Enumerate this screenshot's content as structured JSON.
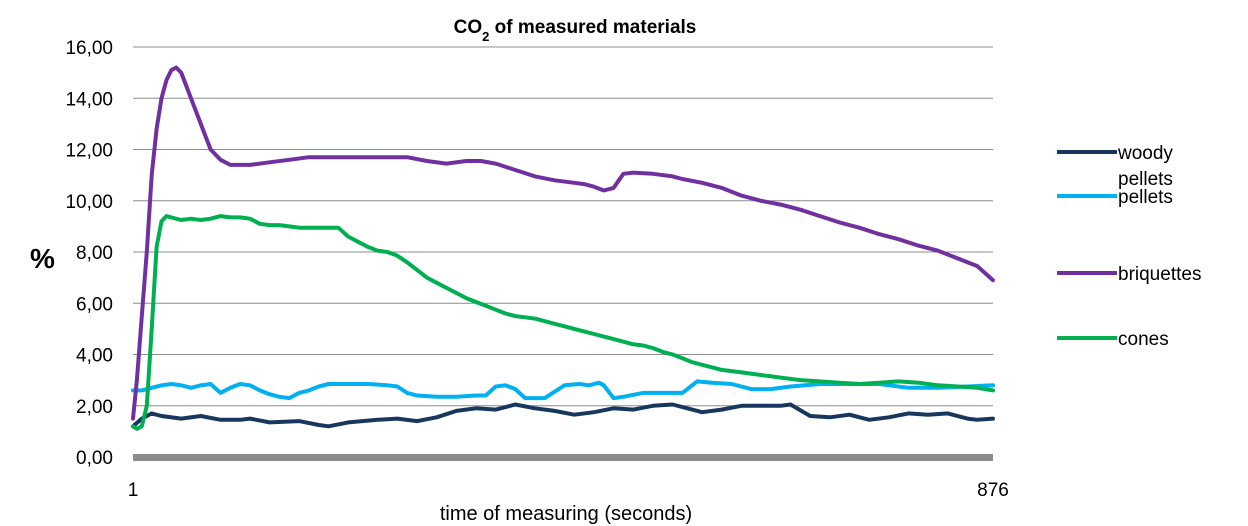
{
  "chart_data": {
    "type": "line",
    "title_main": "CO",
    "title_sub": "2",
    "title_rest": " of measured materials",
    "xlabel": "time of measuring (seconds)",
    "ylabel": "%",
    "xlim": [
      1,
      876
    ],
    "ylim": [
      0,
      16
    ],
    "x_tick_labels": [
      "1",
      "876"
    ],
    "y_tick_labels": [
      "0,00",
      "2,00",
      "4,00",
      "6,00",
      "8,00",
      "10,00",
      "12,00",
      "14,00",
      "16,00"
    ],
    "legend_position": "right",
    "grid": true,
    "series": [
      {
        "name_lines": [
          "woody",
          "pellets"
        ],
        "color": "#17375e",
        "points": [
          [
            1,
            1.2
          ],
          [
            10,
            1.5
          ],
          [
            20,
            1.7
          ],
          [
            30,
            1.6
          ],
          [
            50,
            1.5
          ],
          [
            70,
            1.6
          ],
          [
            90,
            1.45
          ],
          [
            110,
            1.45
          ],
          [
            120,
            1.5
          ],
          [
            140,
            1.35
          ],
          [
            170,
            1.4
          ],
          [
            190,
            1.25
          ],
          [
            200,
            1.2
          ],
          [
            220,
            1.35
          ],
          [
            250,
            1.45
          ],
          [
            270,
            1.5
          ],
          [
            290,
            1.4
          ],
          [
            310,
            1.55
          ],
          [
            330,
            1.8
          ],
          [
            350,
            1.9
          ],
          [
            370,
            1.85
          ],
          [
            390,
            2.05
          ],
          [
            410,
            1.9
          ],
          [
            430,
            1.8
          ],
          [
            450,
            1.65
          ],
          [
            470,
            1.75
          ],
          [
            490,
            1.9
          ],
          [
            510,
            1.85
          ],
          [
            530,
            2.0
          ],
          [
            550,
            2.05
          ],
          [
            565,
            1.9
          ],
          [
            580,
            1.75
          ],
          [
            600,
            1.85
          ],
          [
            620,
            2.0
          ],
          [
            640,
            2.0
          ],
          [
            660,
            2.0
          ],
          [
            670,
            2.05
          ],
          [
            690,
            1.6
          ],
          [
            710,
            1.55
          ],
          [
            730,
            1.65
          ],
          [
            750,
            1.45
          ],
          [
            770,
            1.55
          ],
          [
            790,
            1.7
          ],
          [
            810,
            1.65
          ],
          [
            830,
            1.7
          ],
          [
            850,
            1.5
          ],
          [
            860,
            1.45
          ],
          [
            876,
            1.5
          ]
        ]
      },
      {
        "name_lines": [
          "pellets"
        ],
        "color": "#00b0f0",
        "points": [
          [
            1,
            2.6
          ],
          [
            10,
            2.6
          ],
          [
            20,
            2.7
          ],
          [
            30,
            2.8
          ],
          [
            40,
            2.85
          ],
          [
            50,
            2.8
          ],
          [
            60,
            2.7
          ],
          [
            70,
            2.8
          ],
          [
            80,
            2.85
          ],
          [
            90,
            2.5
          ],
          [
            100,
            2.7
          ],
          [
            110,
            2.85
          ],
          [
            120,
            2.8
          ],
          [
            130,
            2.6
          ],
          [
            140,
            2.45
          ],
          [
            150,
            2.35
          ],
          [
            160,
            2.3
          ],
          [
            170,
            2.5
          ],
          [
            180,
            2.6
          ],
          [
            190,
            2.75
          ],
          [
            200,
            2.85
          ],
          [
            220,
            2.85
          ],
          [
            240,
            2.85
          ],
          [
            260,
            2.8
          ],
          [
            270,
            2.75
          ],
          [
            280,
            2.5
          ],
          [
            290,
            2.4
          ],
          [
            310,
            2.35
          ],
          [
            330,
            2.35
          ],
          [
            350,
            2.4
          ],
          [
            360,
            2.4
          ],
          [
            370,
            2.75
          ],
          [
            380,
            2.8
          ],
          [
            390,
            2.65
          ],
          [
            400,
            2.3
          ],
          [
            420,
            2.3
          ],
          [
            440,
            2.8
          ],
          [
            455,
            2.85
          ],
          [
            465,
            2.8
          ],
          [
            475,
            2.9
          ],
          [
            480,
            2.8
          ],
          [
            490,
            2.3
          ],
          [
            500,
            2.35
          ],
          [
            520,
            2.5
          ],
          [
            540,
            2.5
          ],
          [
            560,
            2.5
          ],
          [
            575,
            2.95
          ],
          [
            590,
            2.9
          ],
          [
            610,
            2.85
          ],
          [
            630,
            2.65
          ],
          [
            650,
            2.65
          ],
          [
            670,
            2.75
          ],
          [
            700,
            2.85
          ],
          [
            730,
            2.85
          ],
          [
            760,
            2.85
          ],
          [
            790,
            2.7
          ],
          [
            820,
            2.7
          ],
          [
            850,
            2.75
          ],
          [
            876,
            2.8
          ]
        ]
      },
      {
        "name_lines": [
          "briquettes"
        ],
        "color": "#7030a0",
        "points": [
          [
            1,
            1.5
          ],
          [
            5,
            3.0
          ],
          [
            10,
            5.5
          ],
          [
            15,
            8.0
          ],
          [
            20,
            11.0
          ],
          [
            25,
            12.8
          ],
          [
            30,
            14.0
          ],
          [
            35,
            14.7
          ],
          [
            40,
            15.1
          ],
          [
            45,
            15.2
          ],
          [
            50,
            15.0
          ],
          [
            55,
            14.5
          ],
          [
            60,
            14.0
          ],
          [
            70,
            13.0
          ],
          [
            80,
            12.0
          ],
          [
            90,
            11.6
          ],
          [
            100,
            11.4
          ],
          [
            120,
            11.4
          ],
          [
            140,
            11.5
          ],
          [
            160,
            11.6
          ],
          [
            180,
            11.7
          ],
          [
            200,
            11.7
          ],
          [
            220,
            11.7
          ],
          [
            240,
            11.7
          ],
          [
            260,
            11.7
          ],
          [
            280,
            11.7
          ],
          [
            300,
            11.55
          ],
          [
            320,
            11.45
          ],
          [
            340,
            11.55
          ],
          [
            355,
            11.55
          ],
          [
            370,
            11.45
          ],
          [
            390,
            11.2
          ],
          [
            410,
            10.95
          ],
          [
            430,
            10.8
          ],
          [
            450,
            10.7
          ],
          [
            460,
            10.65
          ],
          [
            470,
            10.55
          ],
          [
            480,
            10.4
          ],
          [
            490,
            10.5
          ],
          [
            500,
            11.05
          ],
          [
            510,
            11.1
          ],
          [
            530,
            11.05
          ],
          [
            550,
            10.95
          ],
          [
            560,
            10.85
          ],
          [
            580,
            10.7
          ],
          [
            600,
            10.5
          ],
          [
            620,
            10.2
          ],
          [
            640,
            10.0
          ],
          [
            660,
            9.85
          ],
          [
            680,
            9.65
          ],
          [
            700,
            9.4
          ],
          [
            720,
            9.15
          ],
          [
            740,
            8.95
          ],
          [
            760,
            8.7
          ],
          [
            780,
            8.5
          ],
          [
            800,
            8.25
          ],
          [
            820,
            8.05
          ],
          [
            840,
            7.75
          ],
          [
            860,
            7.45
          ],
          [
            876,
            6.9
          ]
        ]
      },
      {
        "name_lines": [
          "cones"
        ],
        "color": "#00b050",
        "points": [
          [
            1,
            1.2
          ],
          [
            5,
            1.1
          ],
          [
            10,
            1.2
          ],
          [
            15,
            2.0
          ],
          [
            20,
            5.0
          ],
          [
            25,
            8.2
          ],
          [
            30,
            9.2
          ],
          [
            35,
            9.4
          ],
          [
            40,
            9.35
          ],
          [
            50,
            9.25
          ],
          [
            60,
            9.3
          ],
          [
            70,
            9.25
          ],
          [
            80,
            9.3
          ],
          [
            90,
            9.4
          ],
          [
            100,
            9.35
          ],
          [
            110,
            9.35
          ],
          [
            120,
            9.3
          ],
          [
            130,
            9.1
          ],
          [
            140,
            9.05
          ],
          [
            150,
            9.05
          ],
          [
            160,
            9.0
          ],
          [
            170,
            8.95
          ],
          [
            180,
            8.95
          ],
          [
            190,
            8.95
          ],
          [
            200,
            8.95
          ],
          [
            210,
            8.95
          ],
          [
            220,
            8.6
          ],
          [
            230,
            8.4
          ],
          [
            240,
            8.2
          ],
          [
            250,
            8.05
          ],
          [
            260,
            8.0
          ],
          [
            270,
            7.85
          ],
          [
            280,
            7.6
          ],
          [
            290,
            7.3
          ],
          [
            300,
            7.0
          ],
          [
            310,
            6.8
          ],
          [
            320,
            6.6
          ],
          [
            330,
            6.4
          ],
          [
            340,
            6.2
          ],
          [
            350,
            6.05
          ],
          [
            360,
            5.9
          ],
          [
            370,
            5.75
          ],
          [
            380,
            5.6
          ],
          [
            390,
            5.5
          ],
          [
            400,
            5.45
          ],
          [
            410,
            5.4
          ],
          [
            420,
            5.3
          ],
          [
            430,
            5.2
          ],
          [
            440,
            5.1
          ],
          [
            450,
            5.0
          ],
          [
            460,
            4.9
          ],
          [
            470,
            4.8
          ],
          [
            480,
            4.7
          ],
          [
            490,
            4.6
          ],
          [
            500,
            4.5
          ],
          [
            510,
            4.4
          ],
          [
            520,
            4.35
          ],
          [
            530,
            4.25
          ],
          [
            540,
            4.1
          ],
          [
            550,
            4.0
          ],
          [
            560,
            3.85
          ],
          [
            570,
            3.7
          ],
          [
            580,
            3.6
          ],
          [
            590,
            3.5
          ],
          [
            600,
            3.4
          ],
          [
            620,
            3.3
          ],
          [
            640,
            3.2
          ],
          [
            660,
            3.1
          ],
          [
            680,
            3.0
          ],
          [
            700,
            2.95
          ],
          [
            720,
            2.9
          ],
          [
            740,
            2.85
          ],
          [
            760,
            2.9
          ],
          [
            780,
            2.95
          ],
          [
            800,
            2.9
          ],
          [
            820,
            2.8
          ],
          [
            840,
            2.75
          ],
          [
            860,
            2.7
          ],
          [
            876,
            2.6
          ]
        ]
      }
    ]
  }
}
